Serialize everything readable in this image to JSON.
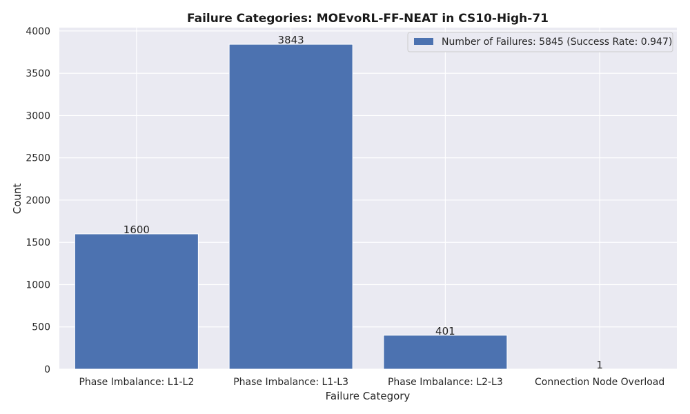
{
  "chart_data": {
    "type": "bar",
    "title": "Failure Categories: MOEvoRL-FF-NEAT in CS10-High-71",
    "xlabel": "Failure Category",
    "ylabel": "Count",
    "categories": [
      "Phase Imbalance: L1-L2",
      "Phase Imbalance: L1-L3",
      "Phase Imbalance: L2-L3",
      "Connection Node Overload"
    ],
    "series": [
      {
        "name": "Number of Failures: 5845 (Success Rate: 0.947)",
        "values": [
          1600,
          3843,
          401,
          1
        ]
      }
    ],
    "data_labels": [
      "1600",
      "3843",
      "401",
      "1"
    ],
    "ylim": [
      0,
      4040
    ],
    "yticks": [
      0,
      500,
      1000,
      1500,
      2000,
      2500,
      3000,
      3500,
      4000
    ],
    "grid": true,
    "legend_position": "top-right",
    "colors": {
      "bar": "#4c72b0",
      "plot_bg": "#eaeaf2",
      "grid": "#ffffff"
    }
  }
}
